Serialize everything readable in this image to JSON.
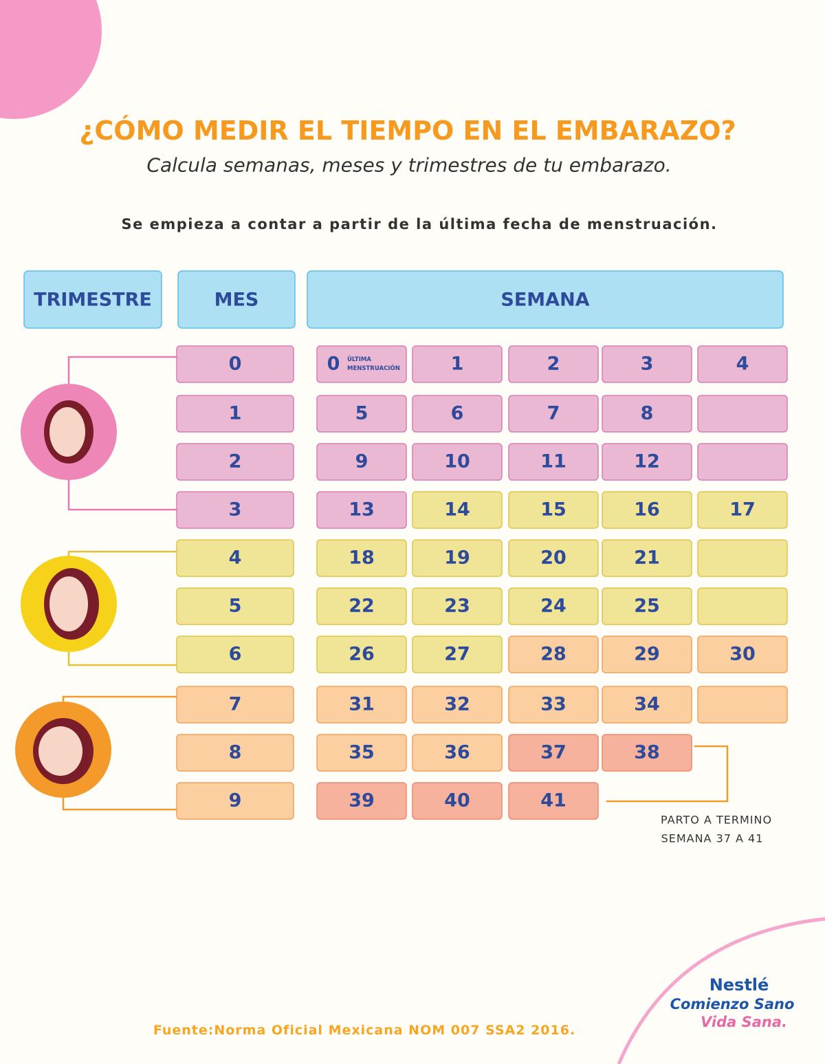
{
  "header": {
    "title": "¿CÓMO MEDIR EL TIEMPO EN EL EMBARAZO?",
    "subtitle": "Calcula semanas, meses y trimestres de tu embarazo.",
    "note": "Se empieza a contar a partir de la última fecha de menstruación."
  },
  "table": {
    "headers": [
      "TRIMESTRE",
      "MES",
      "SEMANA"
    ],
    "rows": [
      {
        "month": "0",
        "color": "pink",
        "weeks": [
          "0",
          "1",
          "2",
          "3",
          "4"
        ],
        "week_colors": [
          "pink",
          "pink",
          "pink",
          "pink",
          "pink"
        ],
        "first_note": [
          "ÚLTIMA",
          "MENSTRUACIÓN"
        ]
      },
      {
        "month": "1",
        "color": "pink",
        "weeks": [
          "5",
          "6",
          "7",
          "8",
          null
        ],
        "week_colors": [
          "pink",
          "pink",
          "pink",
          "pink",
          "pink"
        ]
      },
      {
        "month": "2",
        "color": "pink",
        "weeks": [
          "9",
          "10",
          "11",
          "12",
          null
        ],
        "week_colors": [
          "pink",
          "pink",
          "pink",
          "pink",
          "pink"
        ]
      },
      {
        "month": "3",
        "color": "pink",
        "weeks": [
          "13",
          "14",
          "15",
          "16",
          "17"
        ],
        "week_colors": [
          "pink",
          "yellow",
          "yellow",
          "yellow",
          "yellow"
        ]
      },
      {
        "month": "4",
        "color": "yellow",
        "weeks": [
          "18",
          "19",
          "20",
          "21",
          null
        ],
        "week_colors": [
          "yellow",
          "yellow",
          "yellow",
          "yellow",
          "yellow"
        ]
      },
      {
        "month": "5",
        "color": "yellow",
        "weeks": [
          "22",
          "23",
          "24",
          "25",
          null
        ],
        "week_colors": [
          "yellow",
          "yellow",
          "yellow",
          "yellow",
          "yellow"
        ]
      },
      {
        "month": "6",
        "color": "yellow",
        "weeks": [
          "26",
          "27",
          "28",
          "29",
          "30"
        ],
        "week_colors": [
          "yellow",
          "yellow",
          "orange",
          "orange",
          "orange"
        ]
      },
      {
        "month": "7",
        "color": "orange",
        "weeks": [
          "31",
          "32",
          "33",
          "34",
          null
        ],
        "week_colors": [
          "orange",
          "orange",
          "orange",
          "orange",
          "orange"
        ]
      },
      {
        "month": "8",
        "color": "orange",
        "weeks": [
          "35",
          "36",
          "37",
          "38"
        ],
        "week_colors": [
          "orange",
          "orange",
          "salmon",
          "salmon"
        ]
      },
      {
        "month": "9",
        "color": "orange",
        "weeks": [
          "39",
          "40",
          "41"
        ],
        "week_colors": [
          "salmon",
          "salmon",
          "salmon"
        ]
      }
    ]
  },
  "annotation": [
    "PARTO A TERMINO",
    "SEMANA 37 A 41"
  ],
  "source": "Fuente:Norma Oficial Mexicana NOM 007 SSA2 2016.",
  "logo": {
    "brand": "Nestlé",
    "line1": "Comienzo Sano",
    "line2": "Vida Sana."
  }
}
